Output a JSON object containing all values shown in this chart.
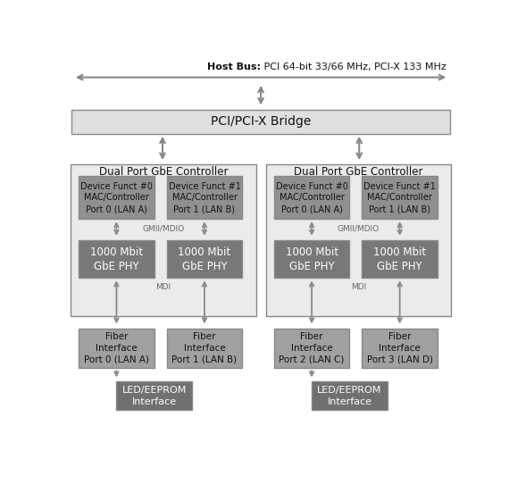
{
  "bg_color": "#ffffff",
  "bridge_fill": "#e0e0e0",
  "ctrl_fill": "#ebebeb",
  "mac_fill": "#909090",
  "phy_fill": "#787878",
  "fiber_fill": "#a0a0a0",
  "led_fill": "#707070",
  "edge_color": "#888888",
  "arrow_color": "#888888",
  "text_dark": "#111111",
  "text_white": "#ffffff",
  "text_label": "#666666",
  "title_bold": "Host Bus:",
  "title_rest": " PCI 64-bit 33/66 MHz, PCI-X 133 MHz",
  "bridge_text": "PCI/PCI-X Bridge",
  "ctrl_text": "Dual Port GbE Controller",
  "gmii_text": "GMII/MDIO",
  "mdi_text": "MDI",
  "phy_text": "1000 Mbit\nGbE PHY",
  "lp0_text": "Device Funct #0\nMAC/Controller\nPort 0 (LAN A)",
  "lp1_text": "Device Funct #1\nMAC/Controller\nPort 1 (LAN B)",
  "rp0_text": "Device Funct #0\nMAC/Controller\nPort 0 (LAN A)",
  "rp1_text": "Device Funct #1\nMAC/Controller\nPort 1 (LAN B)",
  "lf0_text": "Fiber\nInterface\nPort 0 (LAN A)",
  "lf1_text": "Fiber\nInterface\nPort 1 (LAN B)",
  "rf2_text": "Fiber\nInterface\nPort 2 (LAN C)",
  "rf3_text": "Fiber\nInterface\nPort 3 (LAN D)",
  "led_text": "LED/EEPROM\nInterface"
}
